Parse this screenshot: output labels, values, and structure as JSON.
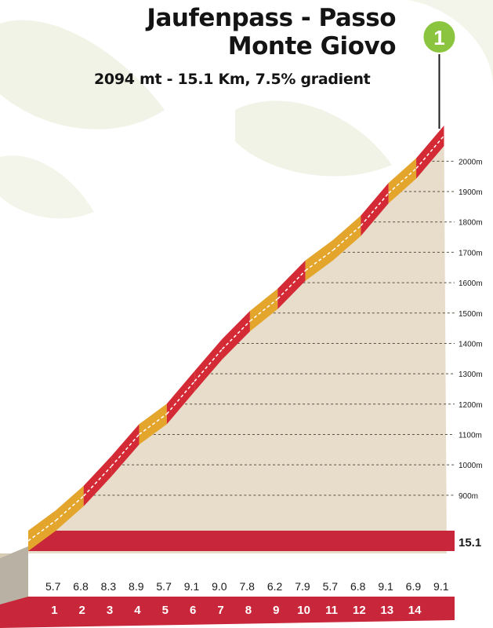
{
  "header": {
    "title_line1": "Jaufenpass - Passo",
    "title_line2": "Monte Giovo",
    "subtitle": "2094 mt - 15.1 Km, 7.5% gradient",
    "badge": "1"
  },
  "colors": {
    "red": "#d42a35",
    "orange": "#e4a52c",
    "fill": "#e7ddca",
    "badge": "#8bc540",
    "km_band": "#c8263a",
    "bg_leaves": "#f0f3e6"
  },
  "chart_data": {
    "type": "area",
    "title": "Jaufenpass - Passo Monte Giovo",
    "subtitle": "2094 mt - 15.1 Km, 7.5% gradient",
    "x_unit": "km",
    "y_unit": "m",
    "xlim": [
      0,
      15.1
    ],
    "ylim": [
      760,
      2094
    ],
    "y_ticks": [
      900,
      1000,
      1100,
      1200,
      1300,
      1400,
      1500,
      1600,
      1700,
      1800,
      1900,
      2000
    ],
    "y_tick_labels": [
      "900m",
      "1000m",
      "1100m",
      "1200m",
      "1300m",
      "1400m",
      "1500m",
      "1600m",
      "1700m",
      "1800m",
      "1900m",
      "2000m"
    ],
    "km_labels": [
      "1",
      "2",
      "3",
      "4",
      "5",
      "6",
      "7",
      "8",
      "9",
      "10",
      "11",
      "12",
      "13",
      "14"
    ],
    "end_label": "15.1",
    "gradients": [
      5.7,
      6.8,
      8.3,
      8.9,
      5.7,
      9.1,
      9.0,
      7.8,
      6.2,
      7.9,
      5.7,
      6.8,
      9.1,
      6.9,
      9.1
    ],
    "gradient_labels": [
      "5.7",
      "6.8",
      "8.3",
      "8.9",
      "5.7",
      "9.1",
      "9.0",
      "7.8",
      "6.2",
      "7.9",
      "5.7",
      "6.8",
      "9.1",
      "6.9",
      "9.1"
    ],
    "segment_colors": [
      "orange",
      "orange",
      "red",
      "red",
      "orange",
      "red",
      "red",
      "red",
      "orange",
      "red",
      "orange",
      "orange",
      "red",
      "orange",
      "red"
    ],
    "grid": true
  }
}
